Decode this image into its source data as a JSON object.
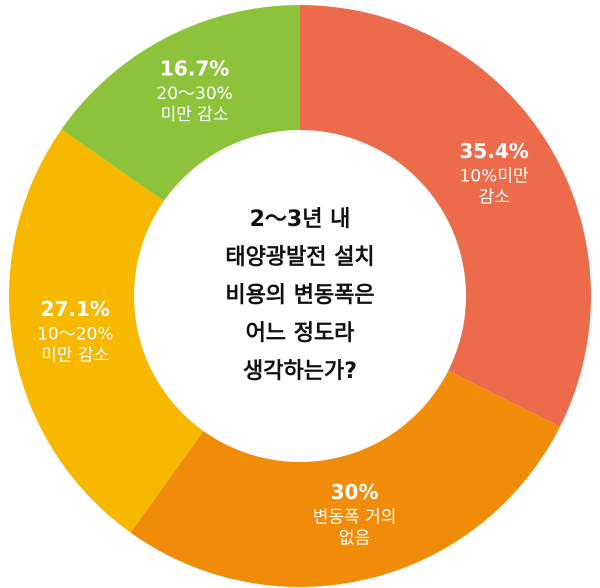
{
  "chart_data": {
    "type": "donut",
    "title": [
      "2～3년 내",
      "태양광발전 설치",
      "비용의 변동폭은",
      "어느 정도라",
      "생각하는가?"
    ],
    "categories": [
      [
        "10%미만",
        "감소"
      ],
      [
        "변동폭 거의",
        "없음"
      ],
      [
        "10～20%",
        "미만 감소"
      ],
      [
        "20～30%",
        "미만 감소"
      ]
    ],
    "values": [
      35.4,
      30,
      27.1,
      16.7
    ],
    "value_labels": [
      "35.4%",
      "30%",
      "27.1%",
      "16.7%"
    ],
    "colors": [
      "#ec6b4a",
      "#f08c0a",
      "#f7b800",
      "#8dc33b"
    ]
  }
}
